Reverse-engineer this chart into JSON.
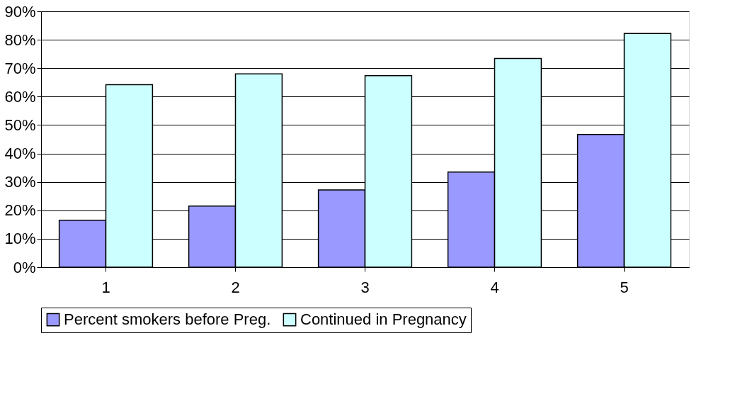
{
  "chart_data": {
    "type": "bar",
    "categories": [
      "1",
      "2",
      "3",
      "4",
      "5"
    ],
    "series": [
      {
        "name": "Percent smokers before Preg.",
        "color": "#9999ff",
        "values": [
          16.5,
          21.5,
          27.2,
          33.5,
          46.7
        ]
      },
      {
        "name": "Continued in Pregnancy",
        "color": "#ccffff",
        "values": [
          64.2,
          68.0,
          67.4,
          73.4,
          82.2
        ]
      }
    ],
    "ylim": [
      0,
      90
    ],
    "yticks": [
      {
        "value": 0,
        "label": "0%"
      },
      {
        "value": 10,
        "label": "10%"
      },
      {
        "value": 20,
        "label": "20%"
      },
      {
        "value": 30,
        "label": "30%"
      },
      {
        "value": 40,
        "label": "40%"
      },
      {
        "value": 50,
        "label": "50%"
      },
      {
        "value": 60,
        "label": "60%"
      },
      {
        "value": 70,
        "label": "70%"
      },
      {
        "value": 80,
        "label": "80%"
      },
      {
        "value": 90,
        "label": "90%"
      }
    ],
    "grid": "y",
    "legend": "bottom"
  }
}
